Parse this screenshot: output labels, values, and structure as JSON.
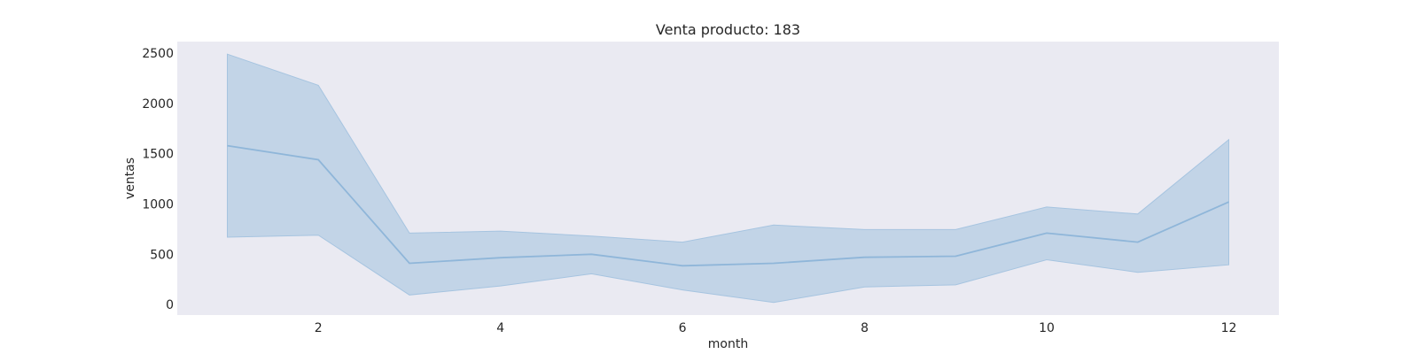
{
  "chart_data": {
    "type": "line",
    "title": "Venta producto: 183",
    "xlabel": "month",
    "ylabel": "ventas",
    "x": [
      1,
      2,
      3,
      4,
      5,
      6,
      7,
      8,
      9,
      10,
      11,
      12
    ],
    "series": [
      {
        "values": [
          1580,
          1440,
          410,
          465,
          500,
          385,
          410,
          470,
          480,
          710,
          620,
          1020
        ],
        "lower": [
          670,
          690,
          95,
          185,
          305,
          145,
          20,
          175,
          195,
          445,
          320,
          395
        ],
        "upper": [
          2490,
          2180,
          710,
          730,
          680,
          620,
          790,
          745,
          745,
          970,
          900,
          1640
        ]
      }
    ],
    "xticks": [
      2,
      4,
      6,
      8,
      10,
      12
    ],
    "yticks": [
      0,
      500,
      1000,
      1500,
      2000,
      2500
    ],
    "xlim": [
      0.45,
      12.55
    ],
    "ylim": [
      -105,
      2615
    ],
    "grid": false,
    "legend": "none",
    "colors": {
      "plot_background": "#eaeaf2",
      "band": "#a6c4e0",
      "line": "#8fb6d9",
      "text": "#262626"
    }
  }
}
